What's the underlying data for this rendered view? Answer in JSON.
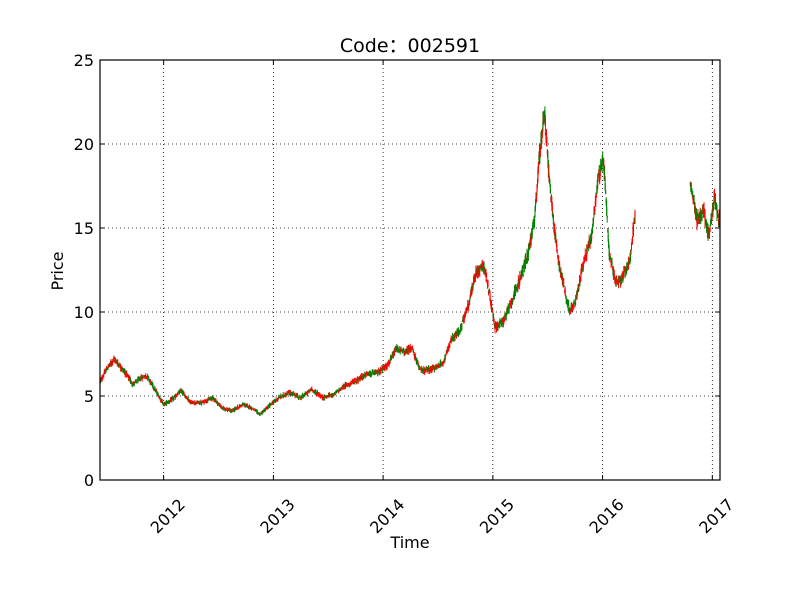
{
  "chart_data": {
    "type": "candlestick",
    "title": "Code：002591",
    "xlabel": "Time",
    "ylabel": "Price",
    "xlim": [
      2011.42,
      2017.07
    ],
    "ylim": [
      0,
      25
    ],
    "yticks": [
      0,
      5,
      10,
      15,
      20,
      25
    ],
    "xticks": [
      2012,
      2013,
      2014,
      2015,
      2016,
      2017
    ],
    "xtick_labels": [
      "2012",
      "2013",
      "2014",
      "2015",
      "2016",
      "2017"
    ],
    "xtick_rotation_deg": 45,
    "grid": "dotted",
    "up_color": "#ff0000",
    "down_color": "#008000",
    "series": [
      {
        "values": [
          [
            2011.42,
            5.8
          ],
          [
            2011.48,
            6.6
          ],
          [
            2011.55,
            7.2
          ],
          [
            2011.6,
            6.8
          ],
          [
            2011.65,
            6.4
          ],
          [
            2011.72,
            5.7
          ],
          [
            2011.8,
            6.1
          ],
          [
            2011.85,
            6.2
          ],
          [
            2011.92,
            5.4
          ],
          [
            2012.0,
            4.5
          ],
          [
            2012.08,
            4.8
          ],
          [
            2012.16,
            5.3
          ],
          [
            2012.25,
            4.6
          ],
          [
            2012.35,
            4.6
          ],
          [
            2012.45,
            4.9
          ],
          [
            2012.53,
            4.3
          ],
          [
            2012.62,
            4.1
          ],
          [
            2012.72,
            4.5
          ],
          [
            2012.8,
            4.3
          ],
          [
            2012.88,
            3.9
          ],
          [
            2012.96,
            4.4
          ],
          [
            2013.05,
            4.9
          ],
          [
            2013.15,
            5.2
          ],
          [
            2013.25,
            4.9
          ],
          [
            2013.35,
            5.4
          ],
          [
            2013.45,
            4.9
          ],
          [
            2013.55,
            5.1
          ],
          [
            2013.65,
            5.6
          ],
          [
            2013.75,
            5.9
          ],
          [
            2013.85,
            6.3
          ],
          [
            2013.95,
            6.4
          ],
          [
            2014.05,
            6.9
          ],
          [
            2014.12,
            7.8
          ],
          [
            2014.2,
            7.6
          ],
          [
            2014.26,
            7.9
          ],
          [
            2014.32,
            6.8
          ],
          [
            2014.37,
            6.5
          ],
          [
            2014.45,
            6.6
          ],
          [
            2014.55,
            7.0
          ],
          [
            2014.62,
            8.3
          ],
          [
            2014.7,
            8.9
          ],
          [
            2014.78,
            10.5
          ],
          [
            2014.85,
            12.4
          ],
          [
            2014.92,
            12.8
          ],
          [
            2014.97,
            11.0
          ],
          [
            2015.02,
            9.1
          ],
          [
            2015.1,
            9.5
          ],
          [
            2015.18,
            10.8
          ],
          [
            2015.25,
            12.0
          ],
          [
            2015.32,
            13.5
          ],
          [
            2015.38,
            15.5
          ],
          [
            2015.42,
            19.0
          ],
          [
            2015.47,
            22.0
          ],
          [
            2015.52,
            17.5
          ],
          [
            2015.56,
            15.0
          ],
          [
            2015.6,
            13.0
          ],
          [
            2015.65,
            11.5
          ],
          [
            2015.7,
            10.0
          ],
          [
            2015.75,
            10.5
          ],
          [
            2015.82,
            12.8
          ],
          [
            2015.9,
            14.5
          ],
          [
            2015.96,
            18.0
          ],
          [
            2016.01,
            19.0
          ],
          [
            2016.06,
            13.5
          ],
          [
            2016.12,
            11.8
          ],
          [
            2016.18,
            12.0
          ],
          [
            2016.25,
            13.2
          ],
          [
            2016.3,
            16.0
          ]
        ]
      },
      {
        "values": [
          [
            2016.8,
            17.6
          ],
          [
            2016.86,
            15.5
          ],
          [
            2016.92,
            16.0
          ],
          [
            2016.97,
            14.5
          ],
          [
            2017.02,
            16.8
          ],
          [
            2017.07,
            15.2
          ]
        ]
      }
    ]
  }
}
